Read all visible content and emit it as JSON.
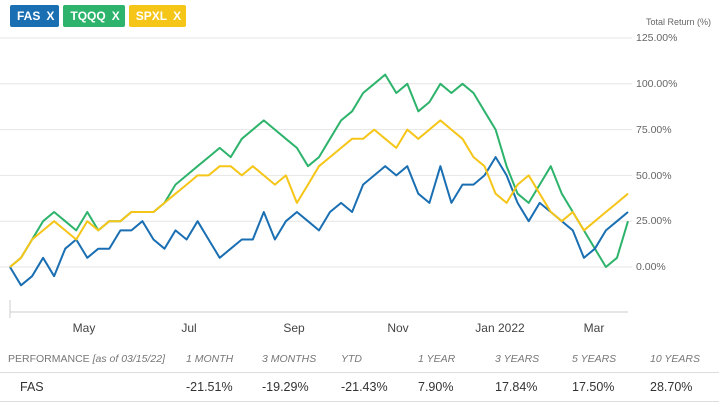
{
  "tickers": [
    {
      "label": "FAS",
      "close": "X",
      "color": "#1a6fb3"
    },
    {
      "label": "TQQQ",
      "close": "X",
      "color": "#2db36b"
    },
    {
      "label": "SPXL",
      "close": "X",
      "color": "#f5c518"
    }
  ],
  "chart": {
    "y_axis_title": "Total Return (%)",
    "y_ticks": [
      "125.00%",
      "100.00%",
      "75.00%",
      "50.00%",
      "25.00%",
      "0.00%"
    ],
    "x_ticks": [
      "May",
      "Jul",
      "Sep",
      "Nov",
      "Jan 2022",
      "Mar"
    ]
  },
  "chart_data": {
    "type": "line",
    "ylabel": "Total Return (%)",
    "ylim": [
      -25,
      125
    ],
    "x_labels": [
      "May",
      "Jul",
      "Sep",
      "Nov",
      "Jan 2022",
      "Mar"
    ],
    "series": [
      {
        "name": "FAS",
        "color": "#1a6fb3",
        "values": [
          0,
          -10,
          -5,
          5,
          -5,
          10,
          15,
          5,
          10,
          10,
          20,
          20,
          25,
          15,
          10,
          20,
          15,
          25,
          15,
          5,
          10,
          15,
          15,
          30,
          15,
          25,
          30,
          25,
          20,
          30,
          35,
          30,
          45,
          50,
          55,
          50,
          55,
          40,
          35,
          55,
          35,
          45,
          45,
          50,
          60,
          50,
          35,
          25,
          35,
          30,
          25,
          20,
          5,
          10,
          20,
          25,
          30
        ]
      },
      {
        "name": "TQQQ",
        "color": "#2db36b",
        "values": [
          0,
          5,
          15,
          25,
          30,
          25,
          20,
          30,
          20,
          25,
          25,
          30,
          30,
          30,
          35,
          45,
          50,
          55,
          60,
          65,
          60,
          70,
          75,
          80,
          75,
          70,
          65,
          55,
          60,
          70,
          80,
          85,
          95,
          100,
          105,
          95,
          100,
          85,
          90,
          100,
          95,
          100,
          95,
          85,
          75,
          55,
          40,
          35,
          45,
          55,
          40,
          30,
          20,
          10,
          0,
          5,
          25
        ]
      },
      {
        "name": "SPXL",
        "color": "#f5c518",
        "values": [
          0,
          5,
          15,
          20,
          25,
          20,
          15,
          25,
          20,
          25,
          25,
          30,
          30,
          30,
          35,
          40,
          45,
          50,
          50,
          55,
          55,
          50,
          55,
          50,
          45,
          50,
          35,
          45,
          55,
          60,
          65,
          70,
          70,
          75,
          70,
          65,
          75,
          70,
          75,
          80,
          75,
          70,
          60,
          55,
          40,
          35,
          45,
          50,
          40,
          30,
          25,
          30,
          20,
          25,
          30,
          35,
          40
        ]
      }
    ]
  },
  "performance": {
    "header_label": "PERFORMANCE",
    "as_of": "[as of 03/15/22]",
    "columns": [
      "1 MONTH",
      "3 MONTHS",
      "YTD",
      "1 YEAR",
      "3 YEARS",
      "5 YEARS",
      "10 YEARS"
    ],
    "rows": [
      {
        "fund": "FAS",
        "values": [
          "-21.51%",
          "-19.29%",
          "-21.43%",
          "7.90%",
          "17.84%",
          "17.50%",
          "28.70%"
        ]
      }
    ]
  }
}
